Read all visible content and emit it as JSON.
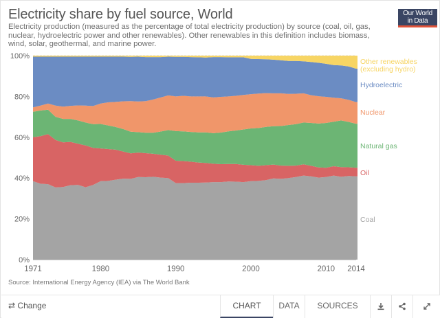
{
  "header": {
    "title": "Electricity share by fuel source, World",
    "subtitle": "Electricity production (measured as the percentage of total electricity production) by source (coal, oil, gas, nuclear, hydroelectric power and other renewables). Other renewables in this definition includes biomass, wind, solar, geothermal, and marine power.",
    "logo_line1": "Our World",
    "logo_line2": "in Data"
  },
  "source": "Source: International Energy Agency (IEA) via The World Bank",
  "footer": {
    "change_label": "Change",
    "change_icon": "swap-arrows-icon",
    "tabs": [
      {
        "label": "CHART",
        "active": true
      },
      {
        "label": "DATA",
        "active": false
      },
      {
        "label": "SOURCES",
        "active": false
      }
    ],
    "icons": [
      "download-icon",
      "share-icon",
      "expand-icon"
    ]
  },
  "chart_data": {
    "type": "area",
    "stacked": true,
    "title": "Electricity share by fuel source, World",
    "xlabel": "",
    "ylabel": "",
    "xlim": [
      1971,
      2014
    ],
    "ylim": [
      0,
      100
    ],
    "x_ticks": [
      "1971",
      "1980",
      "1990",
      "2000",
      "2010",
      "2014"
    ],
    "y_ticks": [
      "0%",
      "20%",
      "40%",
      "60%",
      "80%",
      "100%"
    ],
    "grid": "horizontal dashed",
    "legend": "right (inline labels)",
    "x": [
      1971,
      1972,
      1973,
      1974,
      1975,
      1976,
      1977,
      1978,
      1979,
      1980,
      1981,
      1982,
      1983,
      1984,
      1985,
      1986,
      1987,
      1988,
      1989,
      1990,
      1991,
      1992,
      1993,
      1994,
      1995,
      1996,
      1997,
      1998,
      1999,
      2000,
      2001,
      2002,
      2003,
      2004,
      2005,
      2006,
      2007,
      2008,
      2009,
      2010,
      2011,
      2012,
      2013,
      2014
    ],
    "series": [
      {
        "name": "Coal",
        "color": "#a4a4a4",
        "values": [
          38.5,
          37.2,
          37.0,
          35.4,
          35.6,
          36.5,
          36.6,
          35.5,
          36.6,
          38.5,
          38.6,
          39.2,
          39.7,
          39.6,
          40.5,
          40.4,
          40.6,
          40.2,
          40.0,
          37.5,
          37.5,
          37.7,
          37.7,
          37.8,
          38.0,
          38.0,
          38.3,
          38.2,
          38.0,
          38.5,
          38.6,
          39.0,
          39.8,
          39.6,
          40.0,
          40.5,
          41.2,
          40.8,
          40.2,
          40.5,
          41.2,
          40.6,
          41.0,
          40.8
        ]
      },
      {
        "name": "Oil",
        "color": "#d86464",
        "values": [
          21.5,
          23.3,
          24.5,
          23.3,
          21.9,
          21.2,
          20.2,
          20.5,
          18.2,
          16.0,
          15.6,
          14.7,
          13.3,
          12.5,
          12.0,
          11.8,
          11.3,
          11.2,
          11.0,
          11.0,
          10.8,
          10.3,
          9.9,
          9.6,
          9.0,
          8.8,
          8.6,
          8.7,
          8.5,
          7.8,
          7.4,
          7.3,
          6.8,
          6.5,
          6.0,
          5.6,
          5.5,
          5.2,
          5.0,
          4.5,
          4.6,
          4.8,
          4.3,
          4.2
        ]
      },
      {
        "name": "Natural gas",
        "color": "#6cb574",
        "values": [
          12.5,
          12.6,
          12.0,
          11.3,
          11.5,
          11.3,
          11.4,
          11.2,
          11.6,
          12.0,
          11.6,
          11.1,
          11.0,
          10.6,
          10.0,
          10.0,
          10.3,
          11.4,
          12.5,
          14.5,
          14.6,
          14.6,
          14.8,
          15.0,
          15.0,
          15.5,
          16.0,
          16.4,
          17.3,
          18.0,
          18.5,
          18.8,
          18.8,
          19.4,
          20.0,
          20.3,
          20.5,
          21.0,
          21.5,
          22.0,
          21.8,
          22.8,
          22.2,
          21.6
        ]
      },
      {
        "name": "Nuclear",
        "color": "#f0966a",
        "values": [
          2.1,
          2.4,
          3.0,
          5.5,
          6.0,
          6.4,
          7.4,
          8.3,
          8.9,
          10.0,
          11.3,
          12.3,
          13.6,
          15.0,
          15.0,
          15.5,
          16.3,
          16.7,
          17.0,
          17.0,
          17.4,
          17.4,
          17.6,
          17.6,
          17.5,
          17.5,
          17.1,
          17.0,
          16.9,
          16.8,
          16.9,
          16.5,
          16.1,
          16.0,
          15.2,
          14.9,
          14.3,
          13.6,
          13.4,
          12.8,
          11.8,
          10.9,
          10.8,
          10.6
        ]
      },
      {
        "name": "Hydroelectric",
        "color": "#6b8cc3",
        "values": [
          24.9,
          24.0,
          23.0,
          24.0,
          24.5,
          24.1,
          23.9,
          24.0,
          24.2,
          23.0,
          22.4,
          22.2,
          21.9,
          21.7,
          22.0,
          21.6,
          20.8,
          19.8,
          19.0,
          19.4,
          19.1,
          19.3,
          19.2,
          19.1,
          19.8,
          19.5,
          19.2,
          18.9,
          18.5,
          17.3,
          16.9,
          16.6,
          16.5,
          16.2,
          16.2,
          16.1,
          15.7,
          16.3,
          16.4,
          16.2,
          16.0,
          16.1,
          16.4,
          16.4
        ]
      },
      {
        "name": "Other renewables (excluding hydro)",
        "color": "#f7d564",
        "values": [
          0.5,
          0.5,
          0.5,
          0.5,
          0.5,
          0.5,
          0.5,
          0.5,
          0.5,
          0.5,
          0.5,
          0.5,
          0.5,
          0.6,
          0.5,
          0.7,
          0.7,
          0.7,
          0.5,
          0.6,
          0.6,
          0.7,
          0.8,
          0.9,
          0.7,
          0.7,
          0.8,
          0.8,
          0.8,
          1.6,
          1.7,
          1.8,
          2.0,
          2.3,
          2.6,
          2.6,
          2.8,
          3.1,
          3.5,
          4.0,
          4.6,
          4.8,
          5.3,
          6.4
        ]
      }
    ],
    "legend_labels": [
      {
        "text": "Other renewables",
        "text2": "(excluding hydro)",
        "series": 5
      },
      {
        "text": "Hydroelectric",
        "series": 4
      },
      {
        "text": "Nuclear",
        "series": 3
      },
      {
        "text": "Natural gas",
        "series": 2
      },
      {
        "text": "Oil",
        "series": 1
      },
      {
        "text": "Coal",
        "series": 0
      }
    ]
  }
}
